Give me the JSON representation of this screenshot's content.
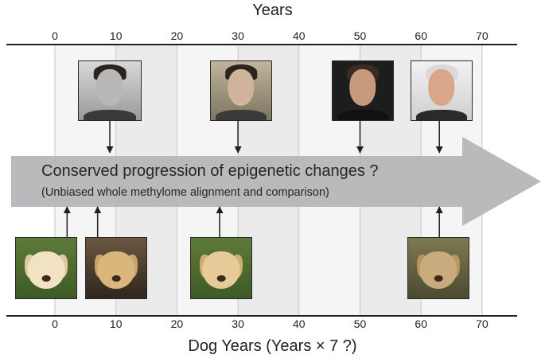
{
  "top_axis": {
    "title": "Years",
    "ticks": [
      "0",
      "10",
      "20",
      "30",
      "40",
      "50",
      "60",
      "70"
    ]
  },
  "bottom_axis": {
    "title": "Dog Years (Years × 7 ?)",
    "ticks": [
      "0",
      "10",
      "20",
      "30",
      "40",
      "50",
      "60",
      "70"
    ]
  },
  "arrow": {
    "title": "Conserved progression of epigenetic changes ?",
    "subtitle": "(Unbiased whole methylome alignment and comparison)"
  },
  "human_photos": [
    {
      "age_years": 9,
      "style": "black-and-white"
    },
    {
      "age_years": 30,
      "style": "color"
    },
    {
      "age_years": 50,
      "style": "color, dark background"
    },
    {
      "age_years": 63,
      "style": "color, light background"
    }
  ],
  "dog_photos": [
    {
      "age_dog_years": 2
    },
    {
      "age_dog_years": 7
    },
    {
      "age_dog_years": 27
    },
    {
      "age_dog_years": 63
    }
  ],
  "colors": {
    "band_light": "#f5f5f5",
    "band_dark": "#ebebeb",
    "arrow_fill": "#b4b6b8",
    "axis_line": "#231f20",
    "grid_line": "#c8c8c8"
  }
}
